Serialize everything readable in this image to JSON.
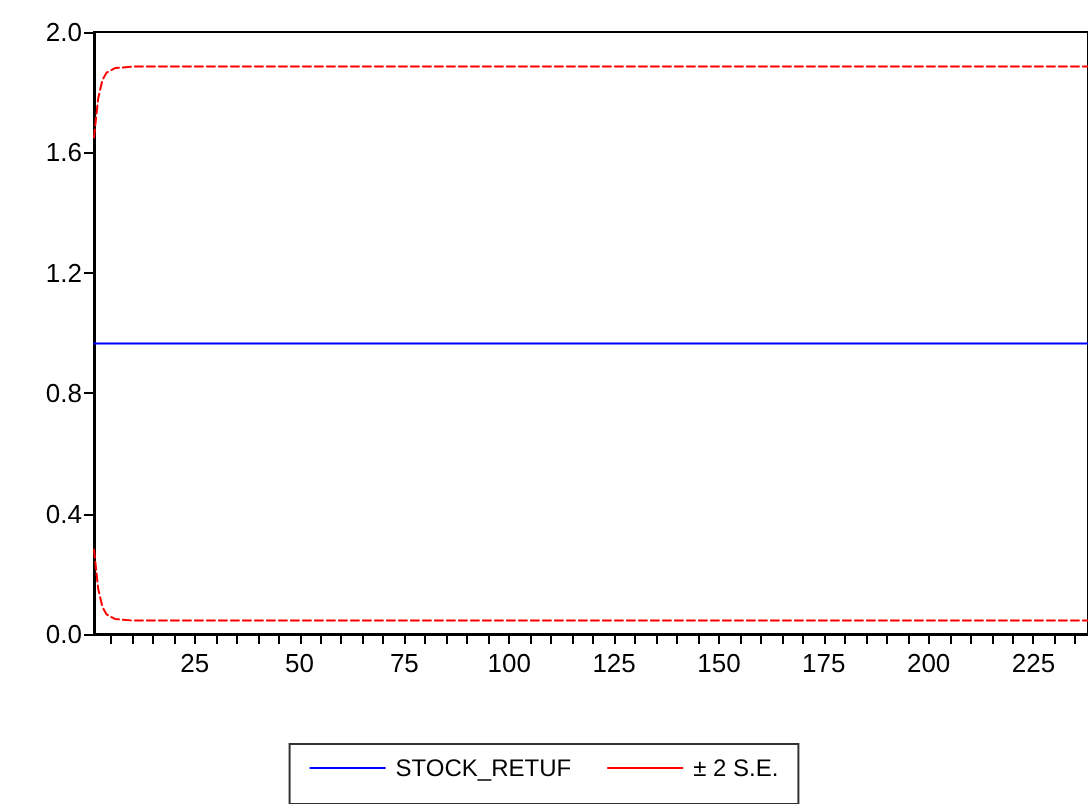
{
  "chart_data": {
    "type": "line",
    "xlim": [
      1,
      238
    ],
    "xticks": [
      {
        "value": 5,
        "label": null
      },
      {
        "value": 10,
        "label": null
      },
      {
        "value": 15,
        "label": null
      },
      {
        "value": 20,
        "label": null
      },
      25,
      {
        "value": 30,
        "label": null
      },
      {
        "value": 35,
        "label": null
      },
      {
        "value": 40,
        "label": null
      },
      {
        "value": 45,
        "label": null
      },
      50,
      {
        "value": 55,
        "label": null
      },
      {
        "value": 60,
        "label": null
      },
      {
        "value": 65,
        "label": null
      },
      {
        "value": 70,
        "label": null
      },
      75,
      {
        "value": 80,
        "label": null
      },
      {
        "value": 85,
        "label": null
      },
      {
        "value": 90,
        "label": null
      },
      {
        "value": 95,
        "label": null
      },
      100,
      {
        "value": 105,
        "label": null
      },
      {
        "value": 110,
        "label": null
      },
      {
        "value": 115,
        "label": null
      },
      {
        "value": 120,
        "label": null
      },
      125,
      {
        "value": 130,
        "label": null
      },
      {
        "value": 135,
        "label": null
      },
      {
        "value": 140,
        "label": null
      },
      {
        "value": 145,
        "label": null
      },
      150,
      {
        "value": 155,
        "label": null
      },
      {
        "value": 160,
        "label": null
      },
      {
        "value": 165,
        "label": null
      },
      {
        "value": 170,
        "label": null
      },
      175,
      {
        "value": 180,
        "label": null
      },
      {
        "value": 185,
        "label": null
      },
      {
        "value": 190,
        "label": null
      },
      {
        "value": 195,
        "label": null
      },
      200,
      {
        "value": 205,
        "label": null
      },
      {
        "value": 210,
        "label": null
      },
      {
        "value": 215,
        "label": null
      },
      {
        "value": 220,
        "label": null
      },
      225,
      {
        "value": 230,
        "label": null
      },
      {
        "value": 235,
        "label": null
      }
    ],
    "ylim": [
      0,
      2
    ],
    "yticks": [
      {
        "value": 0,
        "label": "0.0"
      },
      {
        "value": 0.4,
        "label": "0.4"
      },
      {
        "value": 0.8,
        "label": "0.8"
      },
      {
        "value": 1.2,
        "label": "1.2"
      },
      {
        "value": 1.6,
        "label": "1.6"
      },
      {
        "value": 2,
        "label": "2.0"
      }
    ],
    "grid": false,
    "legend": "bottom",
    "marker": "none",
    "series": [
      {
        "name": "STOCK_RETUF",
        "color": "#0000ff",
        "line_style": "solid",
        "x": [
          1,
          238
        ],
        "values": [
          0.965,
          0.965
        ]
      },
      {
        "name": "± 2 S.E.",
        "color": "#ff0000",
        "line_style": "dashed",
        "x": [
          1,
          2,
          3,
          4,
          6,
          10,
          238
        ],
        "values": [
          1.65,
          1.78,
          1.84,
          1.865,
          1.88,
          1.885,
          1.885
        ]
      },
      {
        "color": "#ff0000",
        "line_style": "dashed",
        "x": [
          1,
          2,
          3,
          4,
          6,
          10,
          238
        ],
        "values": [
          0.28,
          0.15,
          0.09,
          0.065,
          0.05,
          0.045,
          0.045
        ]
      }
    ]
  }
}
